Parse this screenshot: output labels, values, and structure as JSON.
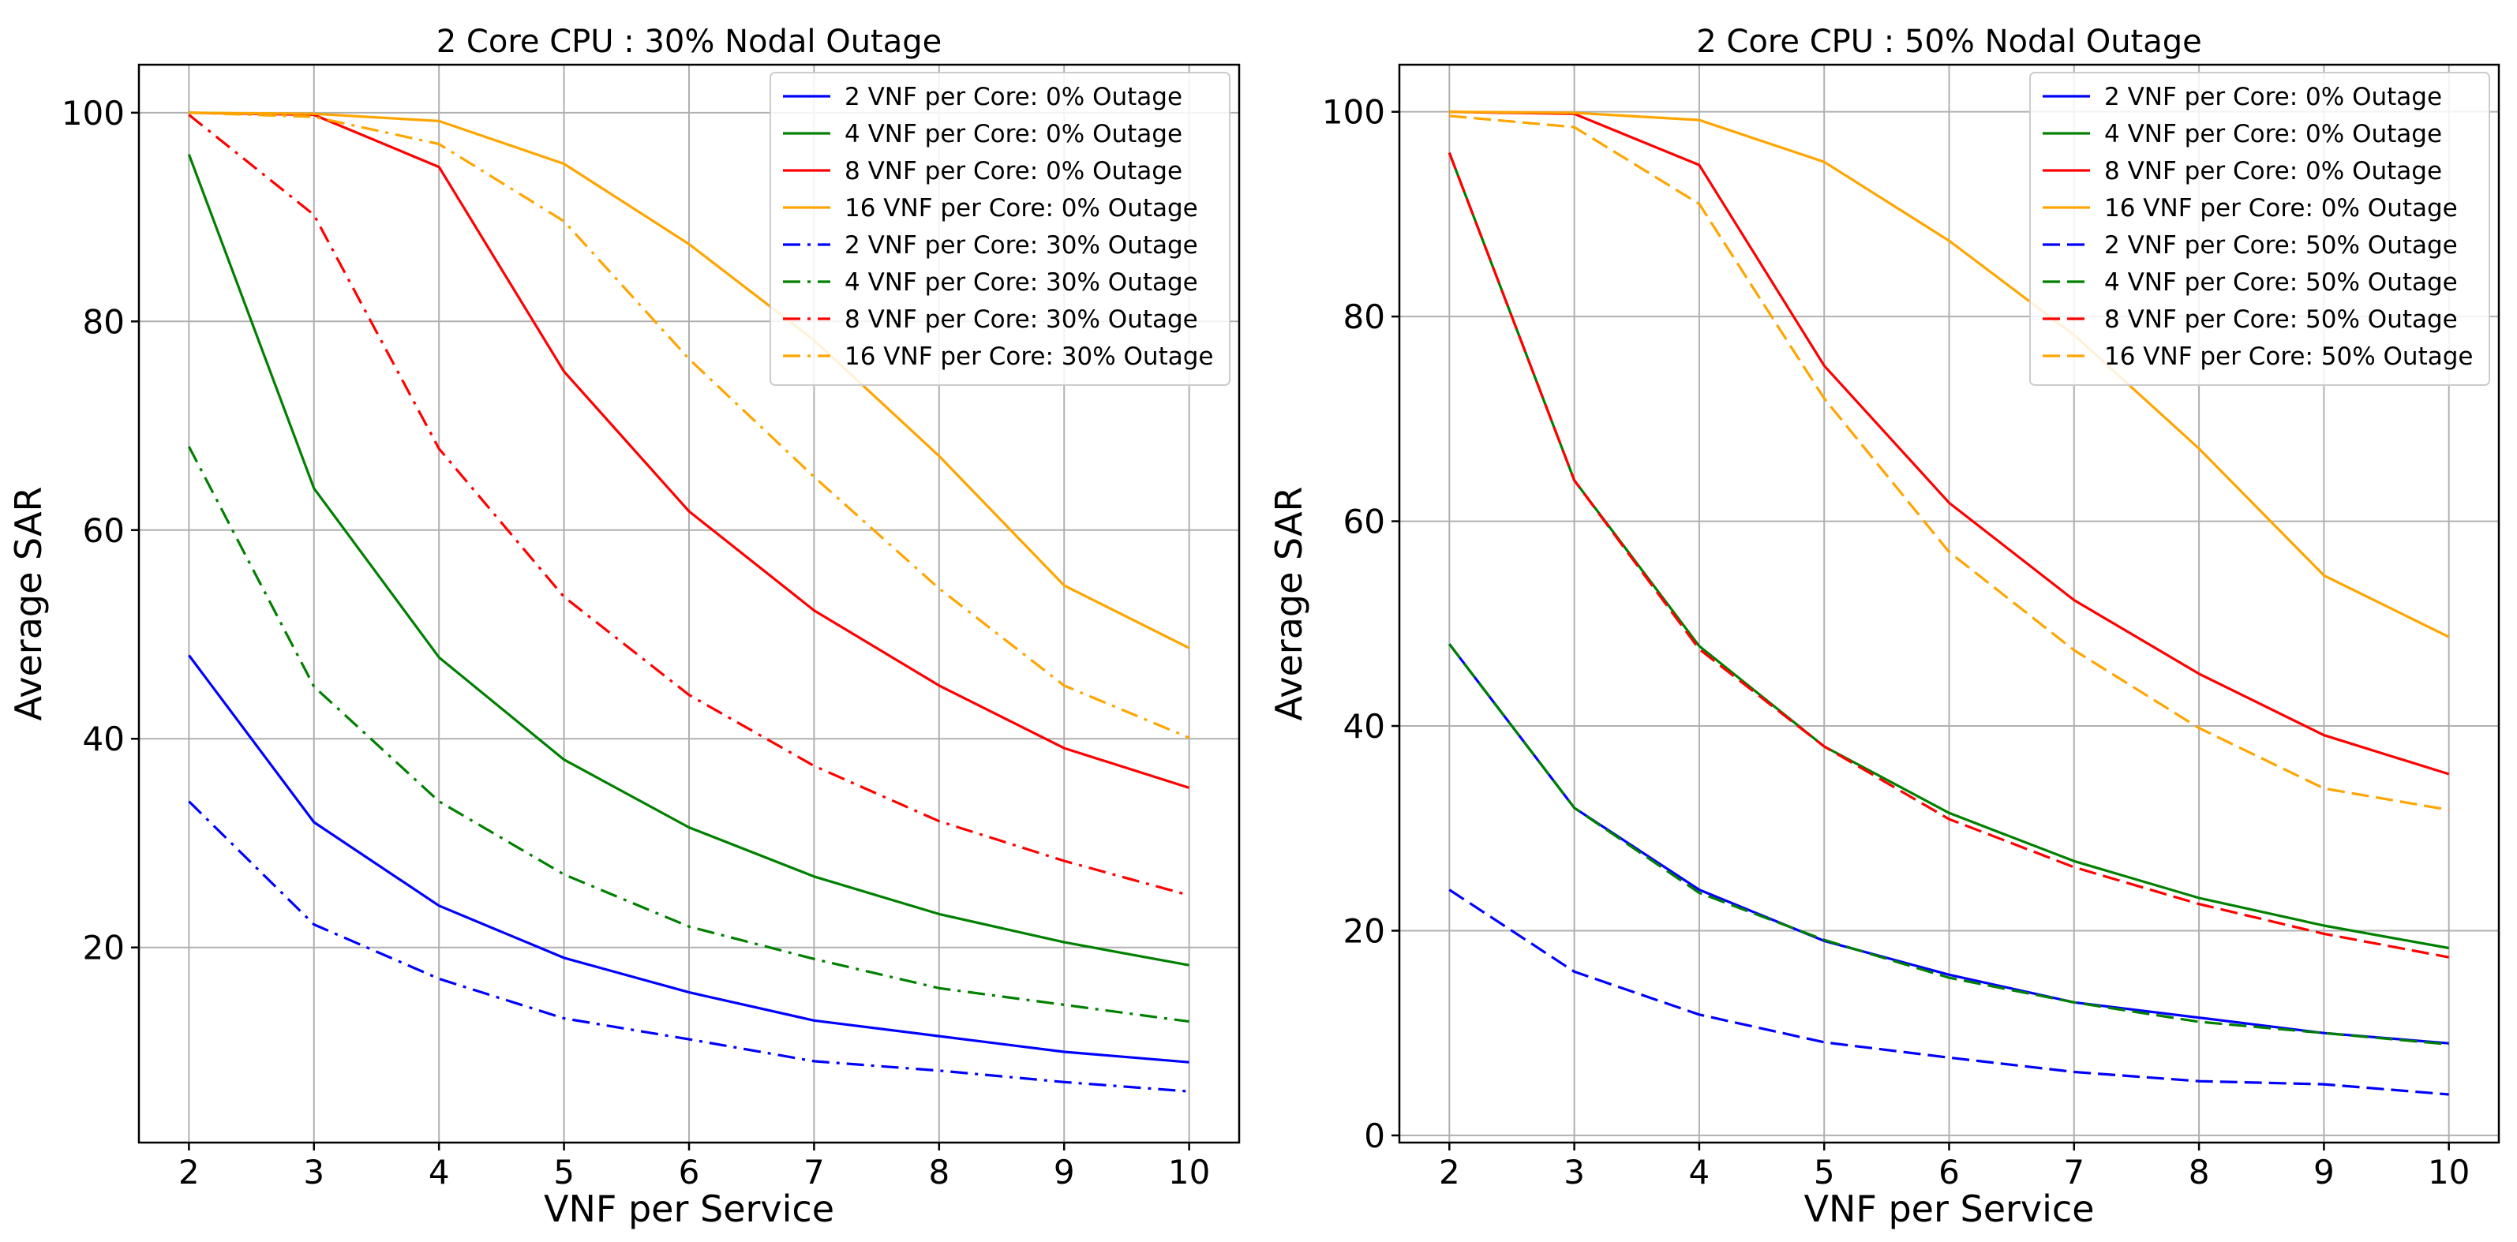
{
  "chart_data": [
    {
      "type": "line",
      "title": "2 Core CPU : 30% Nodal Outage",
      "xlabel": "VNF per Service",
      "ylabel": "Average SAR",
      "xlim": [
        1.6,
        10.4
      ],
      "ylim": [
        1.3,
        104.6
      ],
      "xticks": [
        2,
        3,
        4,
        5,
        6,
        7,
        8,
        9,
        10
      ],
      "yticks": [
        20,
        40,
        60,
        80,
        100
      ],
      "grid": true,
      "legend_position": "top-right",
      "x": [
        2,
        3,
        4,
        5,
        6,
        7,
        8,
        9,
        10
      ],
      "series": [
        {
          "name": "2 VNF per Core: 0% Outage",
          "color": "#0000ff",
          "style": "solid",
          "values": [
            48,
            32,
            24,
            19,
            15.7,
            13,
            11.5,
            10,
            9
          ]
        },
        {
          "name": "4 VNF per Core: 0% Outage",
          "color": "#008000",
          "style": "solid",
          "values": [
            96,
            64,
            47.8,
            38,
            31.5,
            26.8,
            23.2,
            20.5,
            18.3
          ]
        },
        {
          "name": "8 VNF per Core: 0% Outage",
          "color": "#ff0000",
          "style": "solid",
          "values": [
            100,
            99.8,
            94.8,
            75.2,
            61.8,
            52.3,
            45.1,
            39.1,
            35.3
          ]
        },
        {
          "name": "16 VNF per Core: 0% Outage",
          "color": "#ffa500",
          "style": "solid",
          "values": [
            100,
            99.9,
            99.2,
            95.1,
            87.4,
            78.2,
            67.1,
            54.7,
            48.7
          ]
        },
        {
          "name": "2 VNF per Core: 30% Outage",
          "color": "#0000ff",
          "style": "dashdot",
          "values": [
            34,
            22.2,
            17,
            13.2,
            11.2,
            9.1,
            8.2,
            7.1,
            6.2
          ]
        },
        {
          "name": "4 VNF per Core: 30% Outage",
          "color": "#008000",
          "style": "dashdot",
          "values": [
            68,
            45,
            34,
            27,
            22,
            18.9,
            16.1,
            14.5,
            12.9
          ]
        },
        {
          "name": "8 VNF per Core: 30% Outage",
          "color": "#ff0000",
          "style": "dashdot",
          "values": [
            99.8,
            90.2,
            67.8,
            53.6,
            44.2,
            37.4,
            32.1,
            28.3,
            25
          ]
        },
        {
          "name": "16 VNF per Core: 30% Outage",
          "color": "#ffa500",
          "style": "dashdot",
          "values": [
            100,
            99.6,
            97,
            89.6,
            76.4,
            65.1,
            54.4,
            45.1,
            40.1
          ]
        }
      ]
    },
    {
      "type": "line",
      "title": "2 Core CPU : 50% Nodal Outage",
      "xlabel": "VNF per Service",
      "ylabel": "Average SAR",
      "xlim": [
        1.6,
        10.4
      ],
      "ylim": [
        -0.7,
        104.6
      ],
      "xticks": [
        2,
        3,
        4,
        5,
        6,
        7,
        8,
        9,
        10
      ],
      "yticks": [
        0,
        20,
        40,
        60,
        80,
        100
      ],
      "grid": true,
      "legend_position": "top-right",
      "x": [
        2,
        3,
        4,
        5,
        6,
        7,
        8,
        9,
        10
      ],
      "series": [
        {
          "name": "2 VNF per Core: 0% Outage",
          "color": "#0000ff",
          "style": "solid",
          "values": [
            48,
            32,
            24,
            19,
            15.7,
            13,
            11.5,
            10,
            9
          ]
        },
        {
          "name": "4 VNF per Core: 0% Outage",
          "color": "#008000",
          "style": "solid",
          "values": [
            96,
            64,
            47.8,
            38,
            31.5,
            26.8,
            23.2,
            20.5,
            18.3
          ]
        },
        {
          "name": "8 VNF per Core: 0% Outage",
          "color": "#ff0000",
          "style": "solid",
          "values": [
            100,
            99.8,
            94.8,
            75.2,
            61.8,
            52.3,
            45.1,
            39.1,
            35.3
          ]
        },
        {
          "name": "16 VNF per Core: 0% Outage",
          "color": "#ffa500",
          "style": "solid",
          "values": [
            100,
            99.9,
            99.2,
            95.1,
            87.4,
            78.2,
            67.1,
            54.7,
            48.7
          ]
        },
        {
          "name": "2 VNF per Core: 50% Outage",
          "color": "#0000ff",
          "style": "dashed",
          "values": [
            24,
            16,
            11.8,
            9.1,
            7.6,
            6.2,
            5.3,
            5,
            4
          ]
        },
        {
          "name": "4 VNF per Core: 50% Outage",
          "color": "#008000",
          "style": "dashed",
          "values": [
            48,
            32,
            23.7,
            19.1,
            15.4,
            13,
            11.1,
            10,
            8.9
          ]
        },
        {
          "name": "8 VNF per Core: 50% Outage",
          "color": "#ff0000",
          "style": "dashed",
          "values": [
            96,
            64,
            47.5,
            38,
            30.9,
            26.2,
            22.6,
            19.7,
            17.4
          ]
        },
        {
          "name": "16 VNF per Core: 50% Outage",
          "color": "#ffa500",
          "style": "dashed",
          "values": [
            99.6,
            98.5,
            91,
            72,
            57,
            47.4,
            39.8,
            33.9,
            31.8
          ]
        }
      ]
    }
  ]
}
